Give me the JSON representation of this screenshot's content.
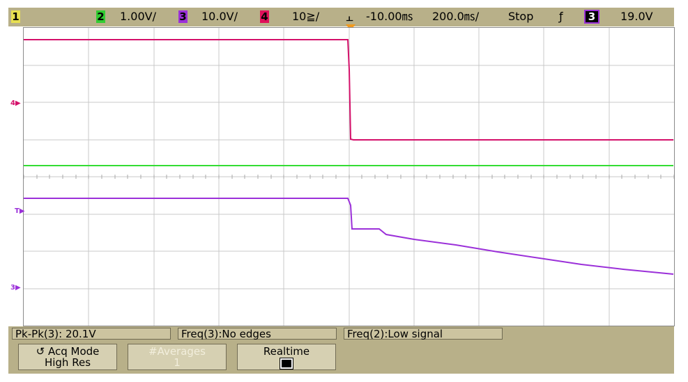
{
  "topbar": {
    "channels": [
      {
        "num": "1",
        "color": "#e0d84a",
        "scale": ""
      },
      {
        "num": "2",
        "color": "#33cc33",
        "scale": "1.00V/"
      },
      {
        "num": "3",
        "color": "#8a2be2",
        "scale": "10.0V/"
      },
      {
        "num": "4",
        "color": "#e0105a",
        "scale": "10≧/"
      }
    ],
    "delay": "-10.00㎳",
    "timebase": "200.0㎳/",
    "run_state": "Stop",
    "trigger_source": "3",
    "trigger_level": "19.0V"
  },
  "markers": {
    "ch4": "4",
    "trigger": "T",
    "ch3": "3"
  },
  "measurements": [
    {
      "label": "Pk-Pk(3): 20.1V"
    },
    {
      "label": "Freq(3):No edges"
    },
    {
      "label": "Freq(2):Low signal"
    }
  ],
  "softkeys": {
    "acq_mode": {
      "title": "Acq Mode",
      "value": "High Res"
    },
    "averages": {
      "title": "#Averages",
      "value": "1"
    },
    "realtime": {
      "title": "Realtime",
      "value": ""
    }
  },
  "colors": {
    "ch2": "#33dd33",
    "ch3": "#9b30d9",
    "ch4": "#d4106a"
  }
}
